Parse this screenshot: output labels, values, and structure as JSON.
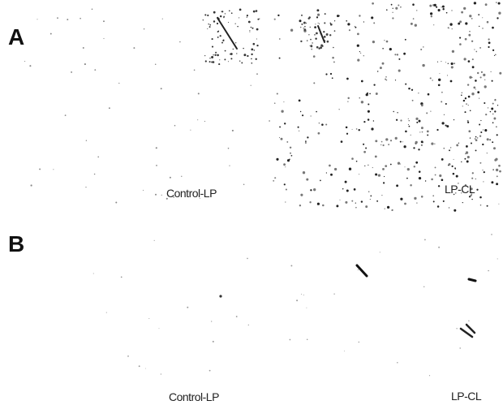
{
  "panels": [
    {
      "letter": "A",
      "left_label": "Control-LP",
      "right_label": "LP-CL"
    },
    {
      "letter": "B",
      "left_label": "Control-LP",
      "right_label": "LP-CL"
    }
  ]
}
